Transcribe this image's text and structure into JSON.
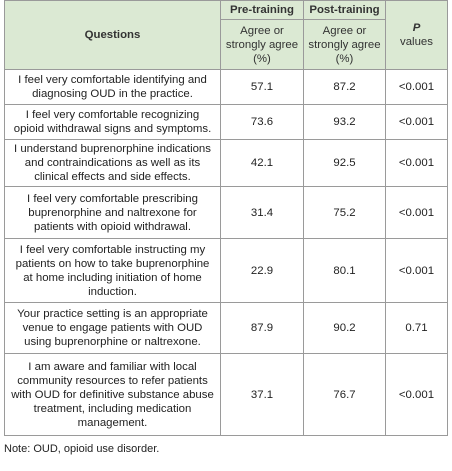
{
  "table": {
    "header": {
      "questions": "Questions",
      "pre_training": "Pre-training",
      "post_training": "Post-training",
      "pre_sub": "Agree or strongly agree (%)",
      "post_sub": "Agree or strongly agree (%)",
      "p_symbol": "P",
      "p_word": "values"
    },
    "rows": [
      [
        "I feel very comfortable identifying and diagnosing OUD in the practice.",
        "57.1",
        "87.2",
        "<0.001"
      ],
      [
        "I feel very comfortable recognizing opioid withdrawal signs and symptoms.",
        "73.6",
        "93.2",
        "<0.001"
      ],
      [
        "I understand buprenorphine indications and contraindications as well as its clinical effects and side effects.",
        "42.1",
        "92.5",
        "<0.001"
      ],
      [
        "I feel very comfortable prescribing buprenorphine and naltrexone for patients with opioid withdrawal.",
        "31.4",
        "75.2",
        "<0.001"
      ],
      [
        "I feel very comfortable instructing my patients on how to take buprenorphine at home including initiation of home induction.",
        "22.9",
        "80.1",
        "<0.001"
      ],
      [
        "Your practice setting is an appropriate venue to engage patients with OUD using buprenorphine or naltrexone.",
        "87.9",
        "90.2",
        "0.71"
      ],
      [
        "I am aware and familiar with local community resources to refer patients with OUD for definitive substance abuse treatment, including medication management.",
        "37.1",
        "76.7",
        "<0.001"
      ]
    ]
  },
  "note": "Note: OUD, opioid use disorder."
}
